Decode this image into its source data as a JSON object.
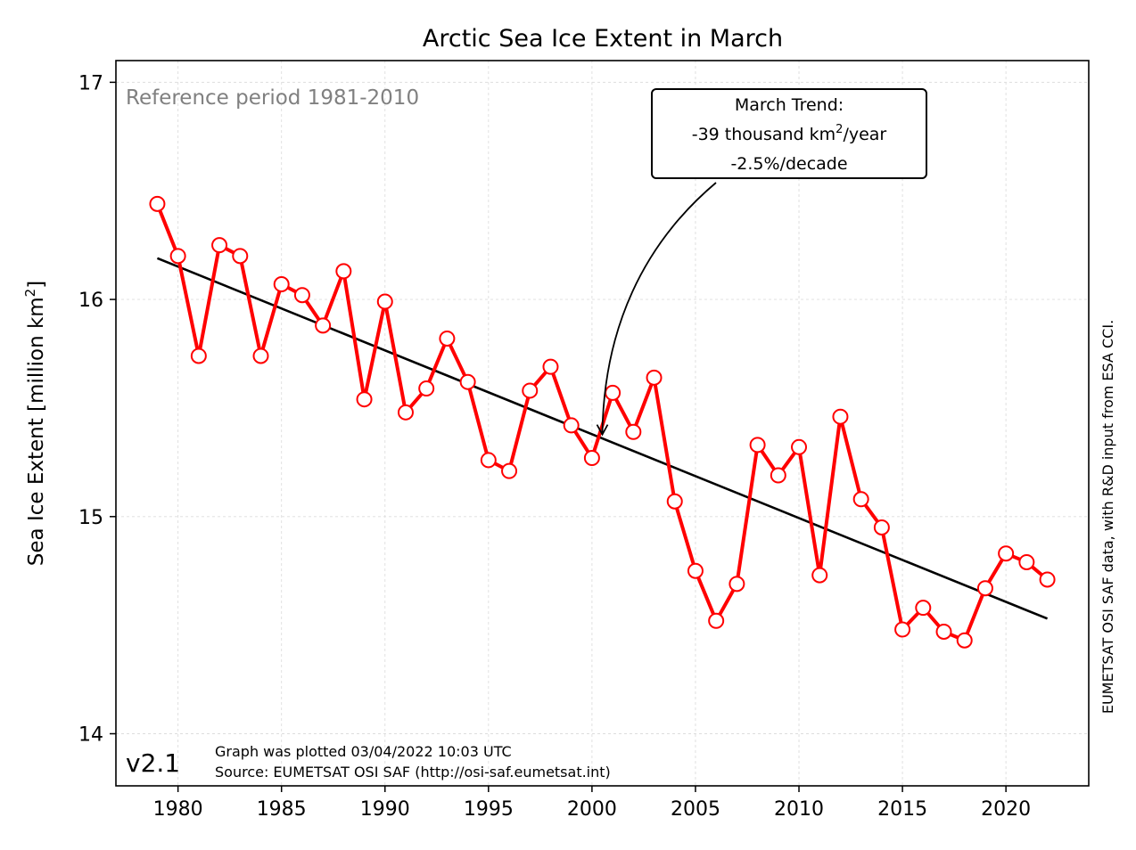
{
  "chart_data": {
    "type": "line",
    "title": "Arctic Sea Ice Extent in March",
    "ylabel_main": "Sea Ice Extent [million km",
    "ylabel_sup": "2",
    "ylabel_close": "]",
    "xlim": [
      1977,
      2024
    ],
    "ylim": [
      13.76,
      17.1
    ],
    "xticks": [
      1980,
      1985,
      1990,
      1995,
      2000,
      2005,
      2010,
      2015,
      2020
    ],
    "yticks": [
      14,
      15,
      16,
      17
    ],
    "grid": true,
    "series": [
      {
        "color": "#ff0000",
        "marker": "open-circle",
        "x": [
          1979,
          1980,
          1981,
          1982,
          1983,
          1984,
          1985,
          1986,
          1987,
          1988,
          1989,
          1990,
          1991,
          1992,
          1993,
          1994,
          1995,
          1996,
          1997,
          1998,
          1999,
          2000,
          2001,
          2002,
          2003,
          2004,
          2005,
          2006,
          2007,
          2008,
          2009,
          2010,
          2011,
          2012,
          2013,
          2014,
          2015,
          2016,
          2017,
          2018,
          2019,
          2020,
          2021,
          2022
        ],
        "y": [
          16.44,
          16.2,
          15.74,
          16.25,
          16.2,
          15.74,
          16.07,
          16.02,
          15.88,
          16.13,
          15.54,
          15.99,
          15.48,
          15.59,
          15.82,
          15.62,
          15.26,
          15.21,
          15.58,
          15.69,
          15.42,
          15.27,
          15.57,
          15.39,
          15.64,
          15.07,
          14.75,
          14.52,
          14.69,
          15.33,
          15.19,
          15.32,
          14.73,
          15.46,
          15.08,
          14.95,
          14.48,
          14.58,
          14.47,
          14.43,
          14.67,
          14.83,
          14.79,
          14.71
        ]
      }
    ],
    "trend": {
      "color": "#000000",
      "x": [
        1979,
        2022
      ],
      "y": [
        16.19,
        14.53
      ]
    },
    "reference_text": "Reference period 1981-2010",
    "annotation": {
      "line1": "March Trend:",
      "line2_pre": "-39 thousand km",
      "line2_sup": "2",
      "line2_post": "/year",
      "line3": "-2.5%/decade",
      "arrow_target": [
        2000.5,
        15.37
      ]
    },
    "version": "v2.1",
    "plot_info_line1": "Graph was plotted 03/04/2022 10:03 UTC",
    "plot_info_line2": "Source: EUMETSAT OSI SAF (http://osi-saf.eumetsat.int)",
    "credit": "EUMETSAT OSI SAF data, with R&D input from ESA CCI."
  }
}
